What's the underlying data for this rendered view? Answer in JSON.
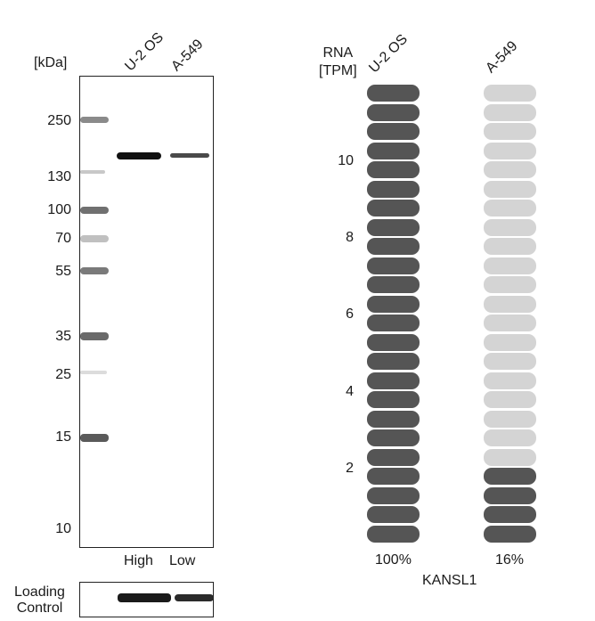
{
  "blot": {
    "unit_label": "[kDa]",
    "lanes": [
      {
        "name": "U-2 OS",
        "level": "High"
      },
      {
        "name": "A-549",
        "level": "Low"
      }
    ],
    "markers": [
      "250",
      "130",
      "100",
      "70",
      "55",
      "35",
      "25",
      "15",
      "10"
    ],
    "loading_control": "Loading\nControl"
  },
  "rna": {
    "axis_label": "RNA\n[TPM]",
    "gene": "KANSL1",
    "colors": {
      "filled": "#555555",
      "empty": "#d4d4d4"
    },
    "ticks": [
      "2",
      "4",
      "6",
      "8",
      "10"
    ]
  },
  "chart_data": {
    "type": "bar",
    "categories": [
      "U-2 OS",
      "A-549"
    ],
    "value_labels": [
      "100%",
      "16%"
    ],
    "filled_pills": [
      24,
      4
    ],
    "total_pills": 24,
    "ylabel": "RNA [TPM]",
    "xlabel": "KANSL1",
    "yticks": [
      2,
      4,
      6,
      8,
      10
    ]
  }
}
